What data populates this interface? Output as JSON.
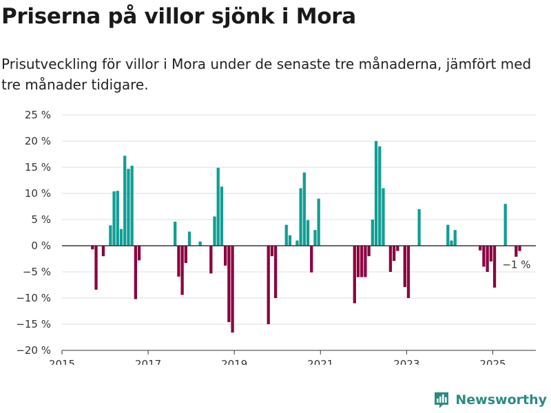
{
  "title": "Priserna på villor sjönk i Mora",
  "subtitle": "Prisutveckling för villor i Mora under de senaste tre månaderna, jämfört med tre månader tidigare.",
  "brand": "Newsworthy",
  "colors": {
    "positive": "#119e94",
    "negative": "#8b0040",
    "grid": "#dddddd",
    "axis": "#333333"
  },
  "chart_data": {
    "type": "bar",
    "title": "Priserna på villor sjönk i Mora",
    "subtitle": "Prisutveckling för villor i Mora under de senaste tre månaderna, jämfört med tre månader tidigare.",
    "xlim": [
      "2015-01",
      "2026-01"
    ],
    "ylim": [
      -20,
      25
    ],
    "y_ticks": [
      25,
      20,
      15,
      10,
      5,
      0,
      -5,
      -10,
      -15,
      -20
    ],
    "y_tick_labels": [
      "25 %",
      "20 %",
      "15 %",
      "10 %",
      "5 %",
      "0 %",
      "−5 %",
      "−10 %",
      "−15 %",
      "−20 %"
    ],
    "x_ticks": [
      "2015-01",
      "2017-01",
      "2019-01",
      "2021-01",
      "2023-01",
      "2025-01"
    ],
    "x_tick_labels": [
      "2015",
      "2017",
      "2019",
      "2021",
      "2023",
      "2025"
    ],
    "grid": true,
    "annotation": {
      "date": "2025-07",
      "value": -1,
      "text": "−1 %"
    },
    "series": [
      {
        "points": [
          {
            "date": "2015-09",
            "value": -0.7
          },
          {
            "date": "2015-10",
            "value": -8.4
          },
          {
            "date": "2015-12",
            "value": -2.0
          },
          {
            "date": "2016-02",
            "value": 3.9
          },
          {
            "date": "2016-03",
            "value": 10.4
          },
          {
            "date": "2016-04",
            "value": 10.5
          },
          {
            "date": "2016-05",
            "value": 3.2
          },
          {
            "date": "2016-06",
            "value": 17.2
          },
          {
            "date": "2016-07",
            "value": 14.7
          },
          {
            "date": "2016-08",
            "value": 15.3
          },
          {
            "date": "2016-09",
            "value": -10.2
          },
          {
            "date": "2016-10",
            "value": -2.8
          },
          {
            "date": "2017-08",
            "value": 4.6
          },
          {
            "date": "2017-09",
            "value": -5.9
          },
          {
            "date": "2017-10",
            "value": -9.4
          },
          {
            "date": "2017-11",
            "value": -3.3
          },
          {
            "date": "2017-12",
            "value": 2.7
          },
          {
            "date": "2018-03",
            "value": 0.8
          },
          {
            "date": "2018-06",
            "value": -5.3
          },
          {
            "date": "2018-07",
            "value": 5.6
          },
          {
            "date": "2018-08",
            "value": 14.9
          },
          {
            "date": "2018-09",
            "value": 11.3
          },
          {
            "date": "2018-10",
            "value": -3.8
          },
          {
            "date": "2018-11",
            "value": -14.6
          },
          {
            "date": "2018-12",
            "value": -16.6
          },
          {
            "date": "2019-10",
            "value": -15.0
          },
          {
            "date": "2019-11",
            "value": -2.0
          },
          {
            "date": "2019-12",
            "value": -10.0
          },
          {
            "date": "2020-03",
            "value": 4.0
          },
          {
            "date": "2020-04",
            "value": 2.0
          },
          {
            "date": "2020-06",
            "value": 1.0
          },
          {
            "date": "2020-07",
            "value": 11.0
          },
          {
            "date": "2020-08",
            "value": 14.0
          },
          {
            "date": "2020-09",
            "value": 4.9
          },
          {
            "date": "2020-10",
            "value": -5.1
          },
          {
            "date": "2020-11",
            "value": 3.0
          },
          {
            "date": "2020-12",
            "value": 9.0
          },
          {
            "date": "2021-10",
            "value": -11.0
          },
          {
            "date": "2021-11",
            "value": -6.0
          },
          {
            "date": "2021-12",
            "value": -6.0
          },
          {
            "date": "2022-01",
            "value": -6.0
          },
          {
            "date": "2022-02",
            "value": -2.0
          },
          {
            "date": "2022-03",
            "value": 5.0
          },
          {
            "date": "2022-04",
            "value": 20.0
          },
          {
            "date": "2022-05",
            "value": 19.0
          },
          {
            "date": "2022-06",
            "value": 11.0
          },
          {
            "date": "2022-08",
            "value": -5.0
          },
          {
            "date": "2022-09",
            "value": -2.9
          },
          {
            "date": "2022-10",
            "value": -1.0
          },
          {
            "date": "2022-12",
            "value": -7.9
          },
          {
            "date": "2023-01",
            "value": -10.0
          },
          {
            "date": "2023-04",
            "value": 7.0
          },
          {
            "date": "2023-12",
            "value": 4.0
          },
          {
            "date": "2024-01",
            "value": 1.0
          },
          {
            "date": "2024-02",
            "value": 3.0
          },
          {
            "date": "2024-09",
            "value": -0.9
          },
          {
            "date": "2024-10",
            "value": -4.0
          },
          {
            "date": "2024-11",
            "value": -5.0
          },
          {
            "date": "2024-12",
            "value": -3.0
          },
          {
            "date": "2025-01",
            "value": -8.0
          },
          {
            "date": "2025-04",
            "value": 8.0
          },
          {
            "date": "2025-07",
            "value": -2.1
          },
          {
            "date": "2025-08",
            "value": -1.0
          }
        ]
      }
    ]
  }
}
